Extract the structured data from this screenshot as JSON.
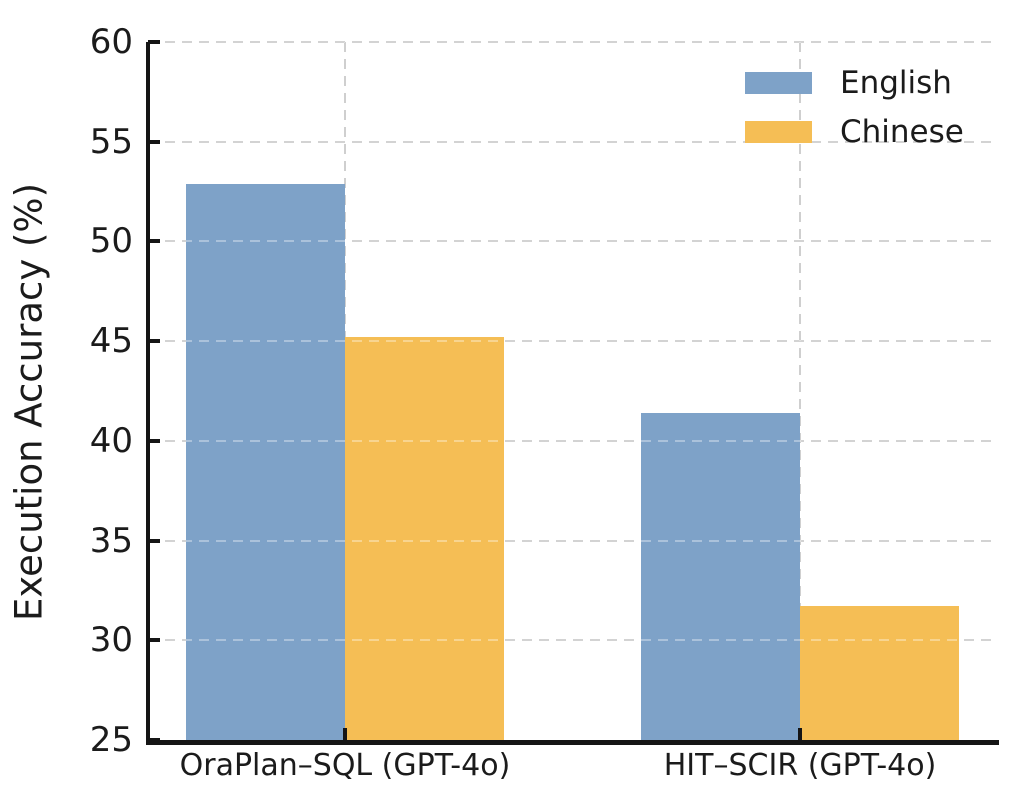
{
  "chart_data": {
    "type": "bar",
    "title": "",
    "xlabel": "",
    "ylabel": "Execution Accuracy (%)",
    "categories": [
      "OraPlan–SQL (GPT-4o)",
      "HIT–SCIR (GPT-4o)"
    ],
    "series": [
      {
        "name": "English",
        "color": "#7EA2C8",
        "values": [
          52.9,
          41.4
        ]
      },
      {
        "name": "Chinese",
        "color": "#F5BE55",
        "values": [
          45.2,
          31.7
        ]
      }
    ],
    "ylim": [
      25,
      60
    ],
    "yticks": [
      25,
      30,
      35,
      40,
      45,
      50,
      55,
      60
    ],
    "grid": true,
    "grid_style": "dashed",
    "legend_position": "upper right",
    "legend_frame": false
  },
  "colors": {
    "axis": "#151515",
    "grid": "#cccccc",
    "text": "#1b1b1b",
    "background": "#ffffff",
    "series_english": "#7EA2C8",
    "series_chinese": "#F5BE55"
  }
}
